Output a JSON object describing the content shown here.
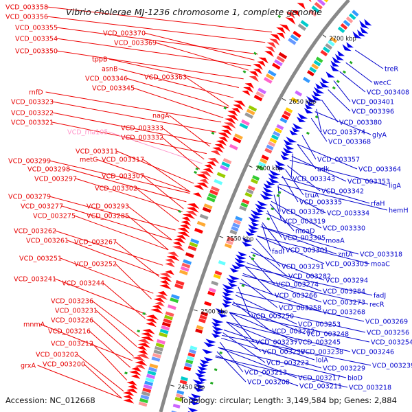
{
  "title": "Vibrio cholerae MJ-1236 chromosome 1, complete genome",
  "accession_text": "Accession: NC_012668",
  "summary_text": "Topology: circular; Length: 3,149,584 bp; Genes: 2,884",
  "colors": {
    "left_labels": "#e60000",
    "right_labels": "#0000cc",
    "rna_label": "#ff99cc",
    "backbone": "#888888"
  },
  "ruler": [
    "2450 kbp",
    "2500 kbp",
    "2550 kbp",
    "2600 kbp",
    "2650 kbp",
    "2700 kbp"
  ],
  "left_labels": [
    {
      "text": "VCD_003358",
      "color": "#e60000"
    },
    {
      "text": "VCD_003356",
      "color": "#e60000"
    },
    {
      "text": "VCD_003355",
      "color": "#e60000"
    },
    {
      "text": "VCD_003370",
      "color": "#e60000"
    },
    {
      "text": "VCD_003354",
      "color": "#e60000"
    },
    {
      "text": "VCD_003369",
      "color": "#e60000"
    },
    {
      "text": "VCD_003350",
      "color": "#e60000"
    },
    {
      "text": "tppB",
      "color": "#e60000"
    },
    {
      "text": "asnB",
      "color": "#e60000"
    },
    {
      "text": "VCD_003346",
      "color": "#e60000"
    },
    {
      "text": "VCD_003363",
      "color": "#e60000"
    },
    {
      "text": "VCD_003345",
      "color": "#e60000"
    },
    {
      "text": "rnfD",
      "color": "#e60000"
    },
    {
      "text": "VCD_003323",
      "color": "#e60000"
    },
    {
      "text": "VCD_003322",
      "color": "#e60000"
    },
    {
      "text": "nagA",
      "color": "#e60000"
    },
    {
      "text": "VCD_003321",
      "color": "#e60000"
    },
    {
      "text": "VCD_003333",
      "color": "#e60000"
    },
    {
      "text": "VCD_rna105",
      "color": "#ff99cc"
    },
    {
      "text": "VCD_003332",
      "color": "#e60000"
    },
    {
      "text": "VCD_003311",
      "color": "#e60000"
    },
    {
      "text": "metG",
      "color": "#e60000"
    },
    {
      "text": "VCD_003317",
      "color": "#e60000"
    },
    {
      "text": "VCD_003299",
      "color": "#e60000"
    },
    {
      "text": "VCD_003298",
      "color": "#e60000"
    },
    {
      "text": "VCD_003307",
      "color": "#e60000"
    },
    {
      "text": "VCD_003297",
      "color": "#e60000"
    },
    {
      "text": "VCD_003302",
      "color": "#e60000"
    },
    {
      "text": "VCD_003279",
      "color": "#e60000"
    },
    {
      "text": "VCD_003277",
      "color": "#e60000"
    },
    {
      "text": "VCD_003293",
      "color": "#e60000"
    },
    {
      "text": "VCD_003275",
      "color": "#e60000"
    },
    {
      "text": "VCD_003285",
      "color": "#e60000"
    },
    {
      "text": "VCD_003262",
      "color": "#e60000"
    },
    {
      "text": "VCD_003261",
      "color": "#e60000"
    },
    {
      "text": "VCD_003267",
      "color": "#e60000"
    },
    {
      "text": "VCD_003251",
      "color": "#e60000"
    },
    {
      "text": "VCD_003252",
      "color": "#e60000"
    },
    {
      "text": "VCD_003241",
      "color": "#e60000"
    },
    {
      "text": "VCD_003244",
      "color": "#e60000"
    },
    {
      "text": "VCD_003236",
      "color": "#e60000"
    },
    {
      "text": "VCD_003231",
      "color": "#e60000"
    },
    {
      "text": "VCD_003226",
      "color": "#e60000"
    },
    {
      "text": "mnmA",
      "color": "#e60000"
    },
    {
      "text": "VCD_003216",
      "color": "#e60000"
    },
    {
      "text": "VCD_003212",
      "color": "#e60000"
    },
    {
      "text": "VCD_003202",
      "color": "#e60000"
    },
    {
      "text": "grxA",
      "color": "#e60000"
    },
    {
      "text": "VCD_003200",
      "color": "#e60000"
    }
  ],
  "right_labels": [
    {
      "text": "treR",
      "color": "#0000cc"
    },
    {
      "text": "wecC",
      "color": "#0000cc"
    },
    {
      "text": "VCD_003408",
      "color": "#0000cc"
    },
    {
      "text": "VCD_003401",
      "color": "#0000cc"
    },
    {
      "text": "VCD_003396",
      "color": "#0000cc"
    },
    {
      "text": "VCD_003380",
      "color": "#0000cc"
    },
    {
      "text": "VCD_003374",
      "color": "#0000cc"
    },
    {
      "text": "glyA",
      "color": "#0000cc"
    },
    {
      "text": "VCD_003368",
      "color": "#0000cc"
    },
    {
      "text": "VCD_003357",
      "color": "#0000cc"
    },
    {
      "text": "adk",
      "color": "#0000cc"
    },
    {
      "text": "VCD_003364",
      "color": "#0000cc"
    },
    {
      "text": "VCD_003343",
      "color": "#0000cc"
    },
    {
      "text": "VCD_003353",
      "color": "#0000cc"
    },
    {
      "text": "ligA",
      "color": "#0000cc"
    },
    {
      "text": "truA",
      "color": "#0000cc"
    },
    {
      "text": "VCD_003342",
      "color": "#0000cc"
    },
    {
      "text": "VCD_003335",
      "color": "#0000cc"
    },
    {
      "text": "rfaH",
      "color": "#0000cc"
    },
    {
      "text": "hemH",
      "color": "#0000cc"
    },
    {
      "text": "VCD_003320",
      "color": "#0000cc"
    },
    {
      "text": "VCD_003334",
      "color": "#0000cc"
    },
    {
      "text": "VCD_003319",
      "color": "#0000cc"
    },
    {
      "text": "VCD_003330",
      "color": "#0000cc"
    },
    {
      "text": "moaD",
      "color": "#0000cc"
    },
    {
      "text": "VCD_003305",
      "color": "#0000cc"
    },
    {
      "text": "moaA",
      "color": "#0000cc"
    },
    {
      "text": "fadI",
      "color": "#0000cc"
    },
    {
      "text": "VCD_003301",
      "color": "#0000cc"
    },
    {
      "text": "zntA",
      "color": "#0000cc"
    },
    {
      "text": "VCD_003318",
      "color": "#0000cc"
    },
    {
      "text": "VCD_003303",
      "color": "#0000cc"
    },
    {
      "text": "moaC",
      "color": "#0000cc"
    },
    {
      "text": "VCD_003291",
      "color": "#0000cc"
    },
    {
      "text": "VCD_003282",
      "color": "#0000cc"
    },
    {
      "text": "VCD_003294",
      "color": "#0000cc"
    },
    {
      "text": "VCD_003274",
      "color": "#0000cc"
    },
    {
      "text": "VCD_003284",
      "color": "#0000cc"
    },
    {
      "text": "fadJ",
      "color": "#0000cc"
    },
    {
      "text": "VCD_003266",
      "color": "#0000cc"
    },
    {
      "text": "VCD_003273",
      "color": "#0000cc"
    },
    {
      "text": "recR",
      "color": "#0000cc"
    },
    {
      "text": "VCD_003258",
      "color": "#0000cc"
    },
    {
      "text": "VCD_003268",
      "color": "#0000cc"
    },
    {
      "text": "VCD_003250",
      "color": "#0000cc"
    },
    {
      "text": "VCD_003269",
      "color": "#0000cc"
    },
    {
      "text": "VCD_003253",
      "color": "#0000cc"
    },
    {
      "text": "VCD_003242",
      "color": "#0000cc"
    },
    {
      "text": "VCD_003248",
      "color": "#0000cc"
    },
    {
      "text": "VCD_003256",
      "color": "#0000cc"
    },
    {
      "text": "VCD_003237",
      "color": "#0000cc"
    },
    {
      "text": "VCD_003245",
      "color": "#0000cc"
    },
    {
      "text": "VCD_003254",
      "color": "#0000cc"
    },
    {
      "text": "VCD_003230",
      "color": "#0000cc"
    },
    {
      "text": "VCD_003238",
      "color": "#0000cc"
    },
    {
      "text": "VCD_003246",
      "color": "#0000cc"
    },
    {
      "text": "VCD_003223",
      "color": "#0000cc"
    },
    {
      "text": "lolA",
      "color": "#0000cc"
    },
    {
      "text": "VCD_003229",
      "color": "#0000cc"
    },
    {
      "text": "VCD_003239",
      "color": "#0000cc"
    },
    {
      "text": "VCD_003213",
      "color": "#0000cc"
    },
    {
      "text": "VCD_003217",
      "color": "#0000cc"
    },
    {
      "text": "bioD",
      "color": "#0000cc"
    },
    {
      "text": "VCD_003208",
      "color": "#0000cc"
    },
    {
      "text": "VCD_003211",
      "color": "#0000cc"
    },
    {
      "text": "VCD_003218",
      "color": "#0000cc"
    }
  ]
}
